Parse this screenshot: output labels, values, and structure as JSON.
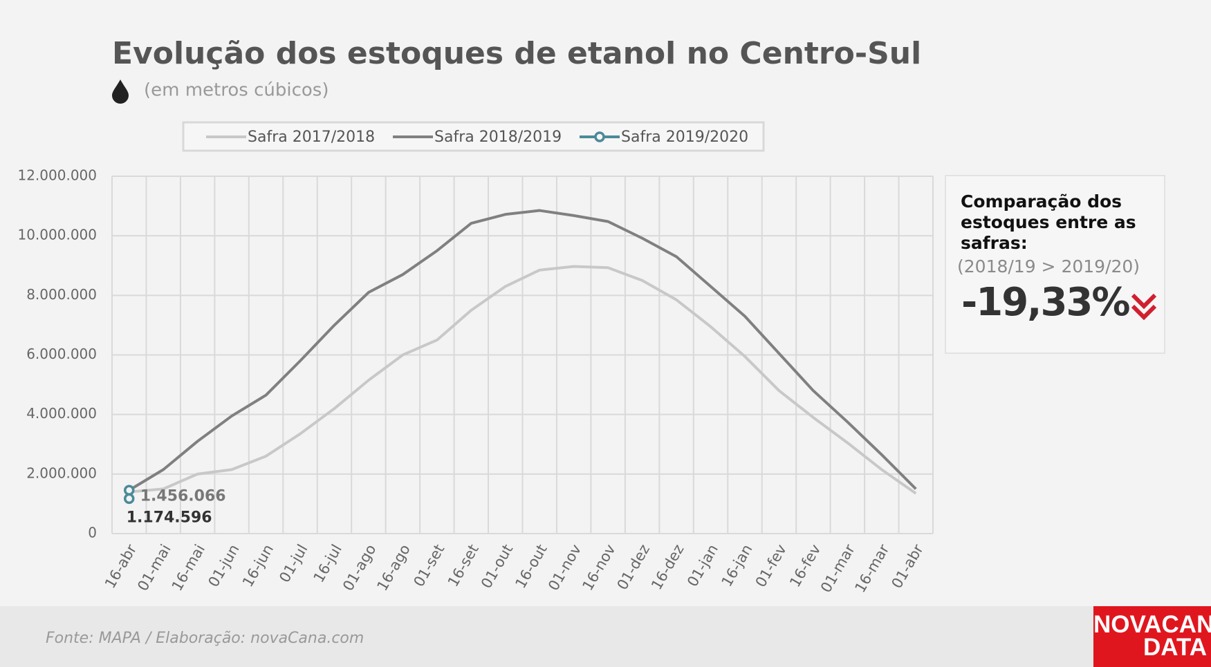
{
  "chart_data": {
    "type": "line",
    "title": "Evolução dos estoques de etanol no Centro-Sul",
    "subtitle": "(em metros cúbicos)",
    "categories": [
      "16-abr",
      "01-mai",
      "16-mai",
      "01-jun",
      "16-jun",
      "01-jul",
      "16-jul",
      "01-ago",
      "16-ago",
      "01-set",
      "16-set",
      "01-out",
      "16-out",
      "01-nov",
      "16-nov",
      "01-dez",
      "16-dez",
      "01-jan",
      "16-jan",
      "01-fev",
      "16-fev",
      "01-mar",
      "16-mar",
      "01-abr"
    ],
    "series": [
      {
        "name": "Safra 2017/2018",
        "color": "#c8c8c8",
        "values": [
          1400000,
          1500000,
          2000000,
          2150000,
          2600000,
          3350000,
          4200000,
          5150000,
          6000000,
          6500000,
          7500000,
          8300000,
          8850000,
          8970000,
          8930000,
          8500000,
          7850000,
          6950000,
          5950000,
          4800000,
          3900000,
          3050000,
          2150000,
          1350000
        ]
      },
      {
        "name": "Safra 2018/2019",
        "color": "#808080",
        "values": [
          1456066,
          2150000,
          3100000,
          3950000,
          4650000,
          5800000,
          7000000,
          8100000,
          8700000,
          9500000,
          10420000,
          10720000,
          10850000,
          10680000,
          10480000,
          9920000,
          9300000,
          8300000,
          7300000,
          6050000,
          4800000,
          3750000,
          2650000,
          1500000
        ],
        "value_labels": [
          "1.456.066",
          null,
          null,
          null,
          null,
          null,
          null,
          null,
          null,
          null,
          null,
          null,
          null,
          null,
          null,
          null,
          null,
          null,
          null,
          null,
          null,
          null,
          null,
          null
        ]
      },
      {
        "name": "Safra 2019/2020",
        "color": "#4b8a99",
        "marker": true,
        "values": [
          1174596,
          null,
          null,
          null,
          null,
          null,
          null,
          null,
          null,
          null,
          null,
          null,
          null,
          null,
          null,
          null,
          null,
          null,
          null,
          null,
          null,
          null,
          null,
          null
        ],
        "value_labels": [
          "1.174.596",
          null,
          null,
          null,
          null,
          null,
          null,
          null,
          null,
          null,
          null,
          null,
          null,
          null,
          null,
          null,
          null,
          null,
          null,
          null,
          null,
          null,
          null,
          null
        ]
      }
    ],
    "ylim": [
      0,
      12000000
    ],
    "yticks": [
      0,
      {
        "value": 2000000,
        "label": "2.000.000"
      },
      {
        "value": 4000000,
        "label": "4.000.000"
      },
      {
        "value": 6000000,
        "label": "6.000.000"
      },
      {
        "value": 8000000,
        "label": "8.000.000"
      },
      {
        "value": 10000000,
        "label": "10.000.000"
      },
      {
        "value": 12000000,
        "label": "12.000.000"
      }
    ],
    "grid": true
  },
  "comparison": {
    "heading": "Comparação dos estoques entre as safras:",
    "subheading": "(2018/19 > 2019/20)",
    "value": "-19,33%"
  },
  "footer": {
    "source": "Fonte: MAPA  / Elaboração: novaCana.com",
    "logo_top": "NOVACANA",
    "logo_bottom": "DATA"
  }
}
